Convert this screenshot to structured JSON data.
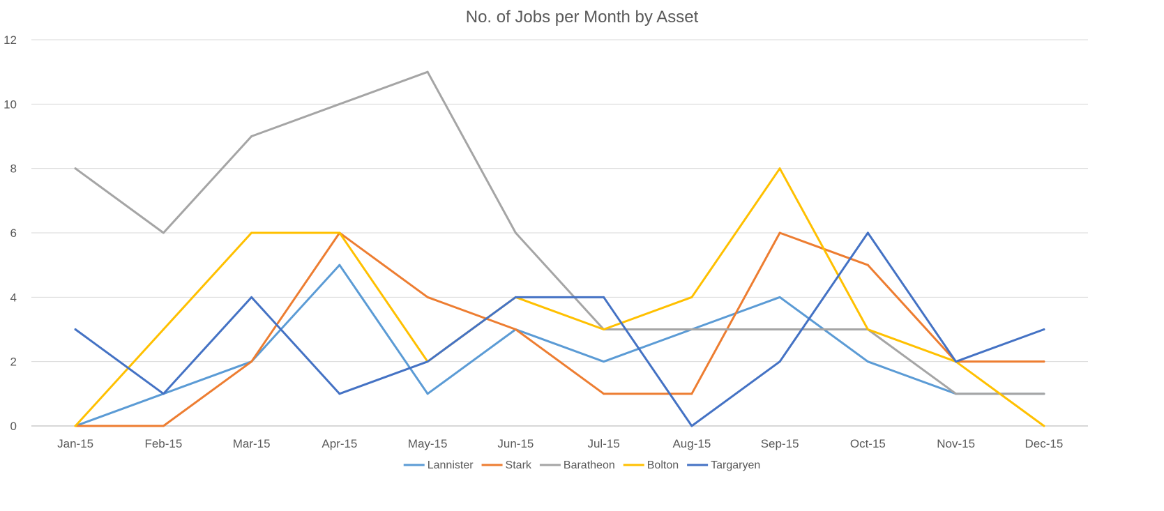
{
  "chart_data": {
    "type": "line",
    "title": "No. of Jobs per Month by Asset",
    "xlabel": "",
    "ylabel": "",
    "categories": [
      "Jan-15",
      "Feb-15",
      "Mar-15",
      "Apr-15",
      "May-15",
      "Jun-15",
      "Jul-15",
      "Aug-15",
      "Sep-15",
      "Oct-15",
      "Nov-15",
      "Dec-15"
    ],
    "ylim": [
      0,
      12
    ],
    "yticks": [
      0,
      2,
      4,
      6,
      8,
      10,
      12
    ],
    "grid": true,
    "legend_position": "bottom",
    "series": [
      {
        "name": "Lannister",
        "color": "#5B9BD5",
        "values": [
          0,
          1,
          2,
          5,
          1,
          3,
          2,
          3,
          4,
          2,
          1,
          1
        ]
      },
      {
        "name": "Stark",
        "color": "#ED7D31",
        "values": [
          0,
          0,
          2,
          6,
          4,
          3,
          1,
          1,
          6,
          5,
          2,
          2
        ]
      },
      {
        "name": "Baratheon",
        "color": "#A5A5A5",
        "values": [
          8,
          6,
          9,
          10,
          11,
          6,
          3,
          3,
          3,
          3,
          1,
          1
        ]
      },
      {
        "name": "Bolton",
        "color": "#FFC000",
        "values": [
          0,
          3,
          6,
          6,
          2,
          4,
          3,
          4,
          8,
          3,
          2,
          0
        ]
      },
      {
        "name": "Targaryen",
        "color": "#4472C4",
        "values": [
          3,
          1,
          4,
          1,
          2,
          4,
          4,
          0,
          2,
          6,
          2,
          3
        ]
      }
    ]
  }
}
